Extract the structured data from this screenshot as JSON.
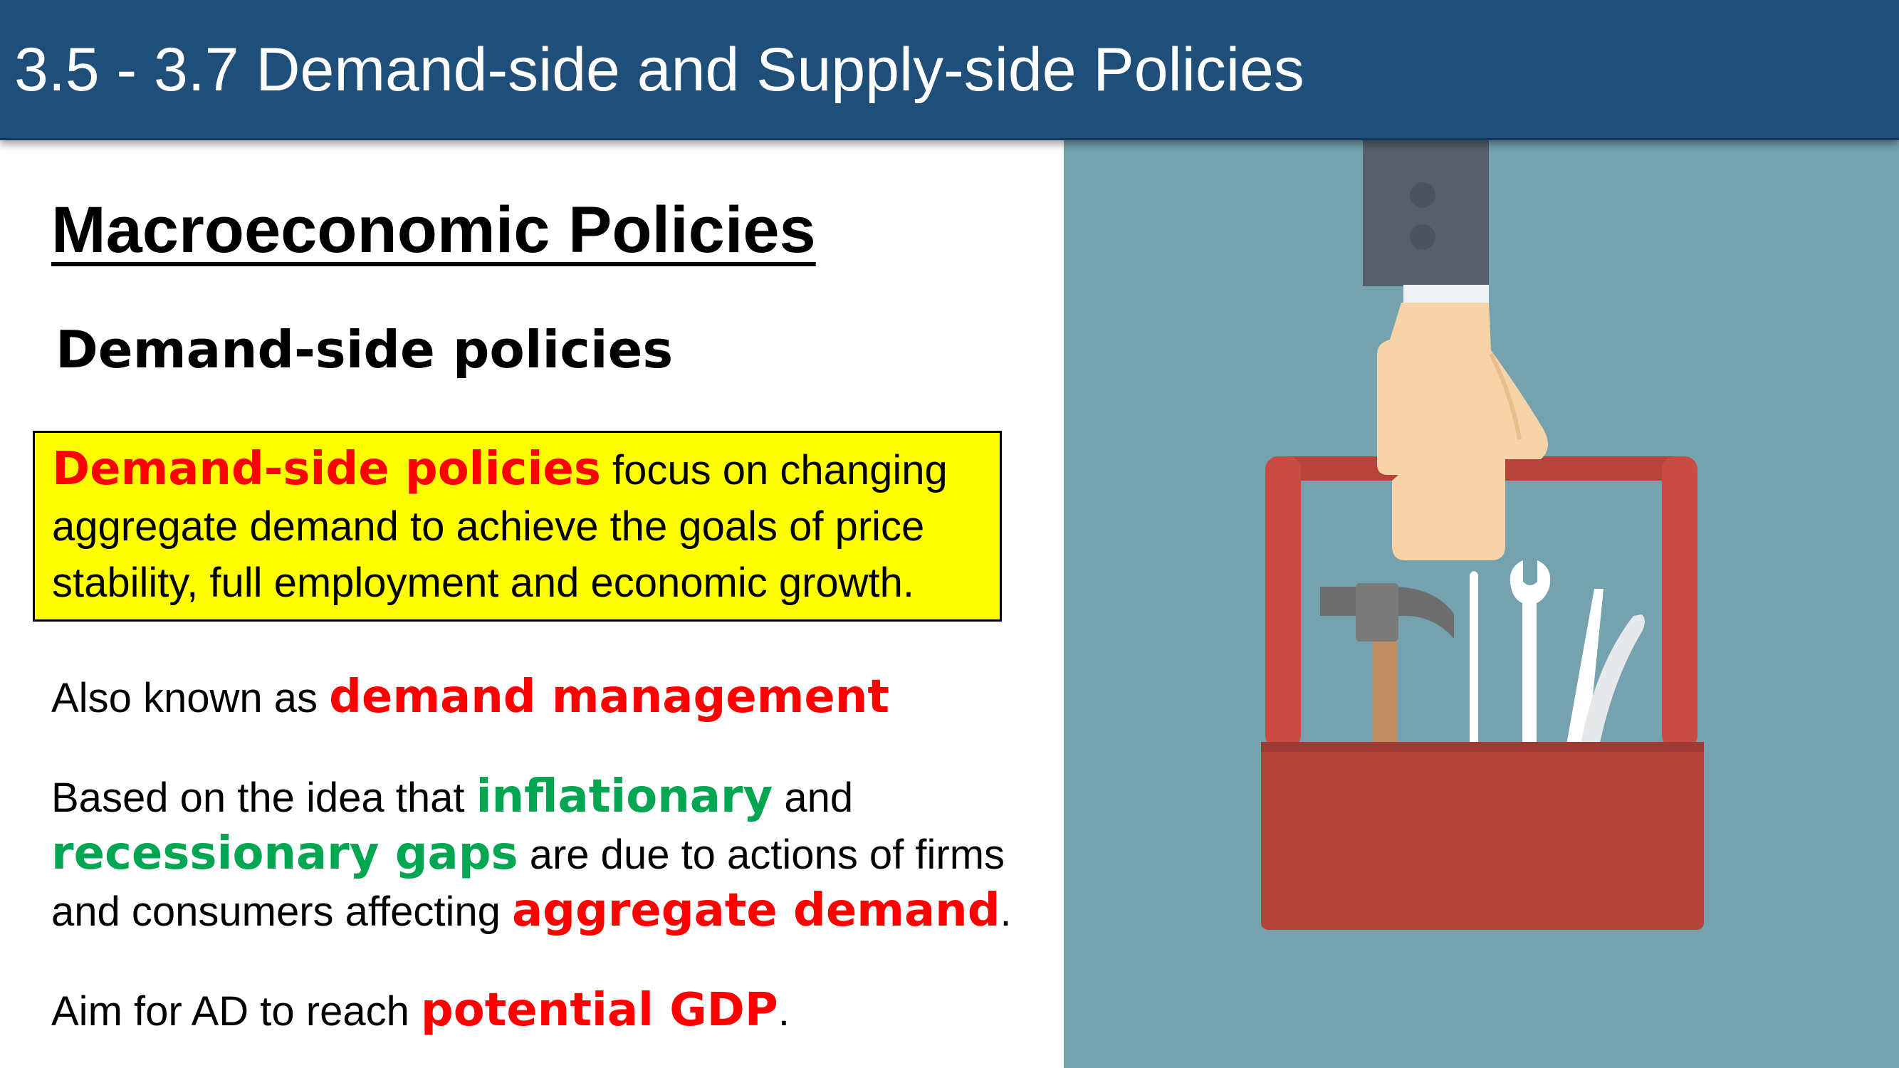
{
  "slide": {
    "title": "3.5 - 3.7 Demand-side and Supply-side Policies",
    "heading": "Macroeconomic Policies",
    "subheading": "Demand-side policies",
    "definition": {
      "term": "Demand-side policies",
      "line1_rest": " focus on changing",
      "line2": "aggregate demand to achieve the goals of  price",
      "line3": "stability, full employment and economic growth."
    },
    "also_known": {
      "prefix": "Also known as ",
      "term": "demand management"
    },
    "based_on": {
      "prefix": "Based on the idea that ",
      "term1": "inflationary",
      "mid1": " and",
      "term2": "recessionary gaps",
      "mid2": " are due to actions of firms",
      "line3_prefix": "and consumers affecting ",
      "term3": "aggregate demand",
      "suffix": "."
    },
    "aim": {
      "prefix": "Aim for AD to reach ",
      "term": "potential GDP",
      "suffix": "."
    }
  },
  "colors": {
    "title_bar": "#1f4e79",
    "highlight_box": "#ffff00",
    "emphasis_red": "#ff0000",
    "emphasis_green": "#00a651",
    "illustration_bg": "#74a2ae"
  },
  "illustration": {
    "subject": "hand-holding-toolbox-icon",
    "tools": [
      "hammer-icon",
      "screwdriver-icon",
      "wrench-icon",
      "pliers-icon"
    ]
  }
}
